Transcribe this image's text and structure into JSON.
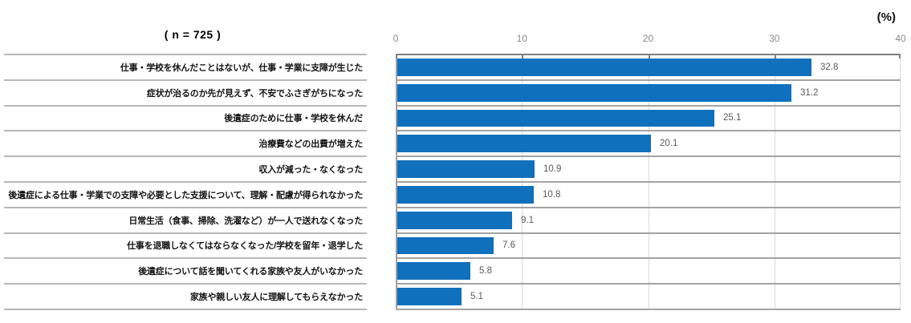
{
  "chart_data": {
    "type": "bar",
    "orientation": "horizontal",
    "sample_size_label": "( n = 725 )",
    "unit_label": "(%)",
    "categories": [
      "仕事・学校を休んだことはないが、仕事・学業に支障が生じた",
      "症状が治るのか先が見えず、不安でふさぎがちになった",
      "後遺症のために仕事・学校を休んだ",
      "治療費などの出費が増えた",
      "収入が減った・なくなった",
      "後遺症による仕事・学業での支障や必要とした支援について、理解・配慮が得られなかった",
      "日常生活（食事、掃除、洗濯など）が一人で送れなくなった",
      "仕事を退職しなくてはならなくなった/学校を留年・退学した",
      "後遺症について話を聞いてくれる家族や友人がいなかった",
      "家族や親しい友人に理解してもらえなかった"
    ],
    "values": [
      32.8,
      31.2,
      25.1,
      20.1,
      10.9,
      10.8,
      9.1,
      7.6,
      5.8,
      5.1
    ],
    "xlim": [
      0,
      40
    ],
    "xticks": [
      0,
      10,
      20,
      30,
      40
    ],
    "bar_color": "#0f70bd",
    "value_label_color": "#595959",
    "grid": true,
    "legend": "none"
  }
}
